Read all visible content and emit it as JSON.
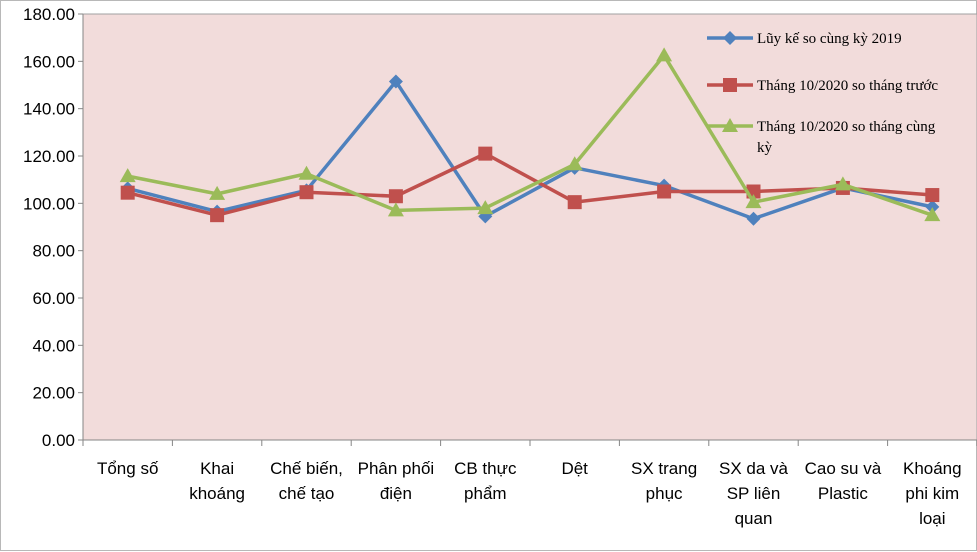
{
  "chart_data": {
    "type": "line",
    "title": "",
    "xlabel": "",
    "ylabel": "",
    "ylim": [
      0,
      180
    ],
    "y_ticks": [
      "0.00",
      "20.00",
      "40.00",
      "60.00",
      "80.00",
      "100.00",
      "120.00",
      "140.00",
      "160.00",
      "180.00"
    ],
    "grid": false,
    "legend_position": "top-right",
    "plot_background": "#f2dcdb",
    "categories": [
      [
        "Tổng số"
      ],
      [
        "Khai",
        "khoáng"
      ],
      [
        "Chế biến,",
        "chế tạo"
      ],
      [
        "Phân phối",
        "điện"
      ],
      [
        "CB thực",
        "phẩm"
      ],
      [
        "Dệt"
      ],
      [
        "SX trang",
        "phục"
      ],
      [
        "SX da và",
        "SP liên",
        "quan"
      ],
      [
        "Cao su và",
        "Plastic"
      ],
      [
        "Khoáng",
        "phi kim",
        "loại"
      ]
    ],
    "series": [
      {
        "name": "Lũy kế so cùng kỳ 2019",
        "legend_lines": [
          "Lũy kế so cùng kỳ 2019"
        ],
        "color": "#4f81bd",
        "marker": "diamond",
        "values": [
          106.3,
          96.5,
          105.5,
          151.5,
          94.5,
          115.0,
          107.5,
          93.5,
          106.5,
          98.5
        ]
      },
      {
        "name": "Tháng 10/2020 so tháng trước",
        "legend_lines": [
          "Tháng 10/2020 so tháng trước"
        ],
        "color": "#c0504d",
        "marker": "square",
        "values": [
          104.5,
          95.0,
          104.7,
          103.0,
          121.0,
          100.5,
          105.0,
          105.0,
          106.5,
          103.5
        ]
      },
      {
        "name": "Tháng 10/2020 so tháng cùng kỳ",
        "legend_lines": [
          "Tháng 10/2020 so tháng cùng",
          "kỳ"
        ],
        "color": "#9bbb59",
        "marker": "triangle",
        "values": [
          111.5,
          104.0,
          112.5,
          97.0,
          98.0,
          116.5,
          162.5,
          100.5,
          108.0,
          95.0
        ]
      }
    ]
  }
}
